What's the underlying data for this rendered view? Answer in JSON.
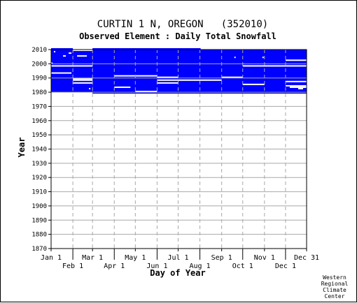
{
  "chart_data": {
    "type": "heatmap",
    "title": "CURTIN 1 N, OREGON   (352010)",
    "subtitle": "Observed Element : Daily Total Snowfall",
    "xlabel": "Day of Year",
    "ylabel": "Year",
    "x_ticks_top_row": [
      "Jan 1",
      "Mar 1",
      "May 1",
      "Jul 1",
      "Sep 1",
      "Nov 1",
      "Dec 31"
    ],
    "x_ticks_bottom_row": [
      "Feb 1",
      "Apr 1",
      "Jun 1",
      "Aug 1",
      "Oct 1",
      "Dec 1"
    ],
    "x_tick_days": [
      1,
      32,
      60,
      91,
      121,
      152,
      182,
      213,
      244,
      274,
      305,
      335,
      365
    ],
    "x_range": [
      1,
      365
    ],
    "y_range": [
      1870,
      2010
    ],
    "y_ticks": [
      1870,
      1880,
      1890,
      1900,
      1910,
      1920,
      1930,
      1940,
      1950,
      1960,
      1970,
      1980,
      1990,
      2000,
      2010
    ],
    "grid": true,
    "data_color": "#0000ff",
    "gap_color": "#ffffff",
    "data_blocks": [
      {
        "year_start": 1980,
        "year_end": 2010,
        "day_start": 1,
        "day_end": 32
      },
      {
        "year_start": 1980,
        "year_end": 2008,
        "day_start": 32,
        "day_end": 60
      },
      {
        "year_start": 1979,
        "year_end": 2010,
        "day_start": 60,
        "day_end": 365
      }
    ],
    "missing_segments": [
      {
        "year": 2008,
        "day_start": 5,
        "day_end": 7
      },
      {
        "year": 2007,
        "day_start": 26,
        "day_end": 30
      },
      {
        "year": 2005,
        "day_start": 18,
        "day_end": 22
      },
      {
        "year": 2005,
        "day_start": 38,
        "day_end": 52
      },
      {
        "year": 2000,
        "day_start": 1,
        "day_end": 3
      },
      {
        "year": 1998,
        "day_start": 1,
        "day_end": 60
      },
      {
        "year": 1993,
        "day_start": 1,
        "day_end": 30
      },
      {
        "year": 1989,
        "day_start": 32,
        "day_end": 60
      },
      {
        "year": 1988,
        "day_start": 32,
        "day_end": 60
      },
      {
        "year": 1986,
        "day_start": 32,
        "day_end": 60
      },
      {
        "year": 1982,
        "day_start": 55,
        "day_end": 57
      },
      {
        "year": 1991,
        "day_start": 91,
        "day_end": 152
      },
      {
        "year": 1983,
        "day_start": 91,
        "day_end": 114
      },
      {
        "year": 1980,
        "day_start": 121,
        "day_end": 152
      },
      {
        "year": 1990,
        "day_start": 152,
        "day_end": 182
      },
      {
        "year": 1988,
        "day_start": 152,
        "day_end": 182
      },
      {
        "year": 1986,
        "day_start": 152,
        "day_end": 182
      },
      {
        "year": 1988,
        "day_start": 182,
        "day_end": 244
      },
      {
        "year": 1990,
        "day_start": 244,
        "day_end": 274
      },
      {
        "year": 1985,
        "day_start": 274,
        "day_end": 305
      },
      {
        "year": 2010,
        "day_start": 214,
        "day_end": 365
      },
      {
        "year": 2004,
        "day_start": 262,
        "day_end": 264
      },
      {
        "year": 2004,
        "day_start": 302,
        "day_end": 304
      },
      {
        "year": 2002,
        "day_start": 335,
        "day_end": 365
      },
      {
        "year": 1998,
        "day_start": 274,
        "day_end": 365
      },
      {
        "year": 1987,
        "day_start": 335,
        "day_end": 365
      },
      {
        "year": 1984,
        "day_start": 335,
        "day_end": 365
      },
      {
        "year": 1983,
        "day_start": 341,
        "day_end": 365
      },
      {
        "year": 1982,
        "day_start": 353,
        "day_end": 360
      }
    ]
  },
  "credit": {
    "line1": "Western",
    "line2": "Regional",
    "line3": "Climate",
    "line4": "Center"
  }
}
